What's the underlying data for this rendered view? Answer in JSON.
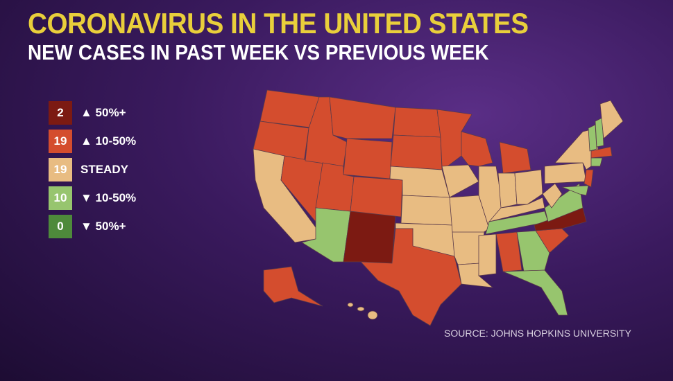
{
  "title": "CORONAVIRUS IN THE UNITED STATES",
  "subtitle": "NEW CASES IN PAST WEEK VS PREVIOUS WEEK",
  "legend": [
    {
      "count": 2,
      "label": "▲ 50%+",
      "color": "#7c1a12"
    },
    {
      "count": 19,
      "label": "▲ 10-50%",
      "color": "#d44d2e"
    },
    {
      "count": 19,
      "label": "STEADY",
      "color": "#e8bc82"
    },
    {
      "count": 10,
      "label": "▼ 10-50%",
      "color": "#97c56e"
    },
    {
      "count": 0,
      "label": "▼ 50%+",
      "color": "#4e8a3b"
    }
  ],
  "source": "SOURCE: JOHNS HOPKINS UNIVERSITY"
}
